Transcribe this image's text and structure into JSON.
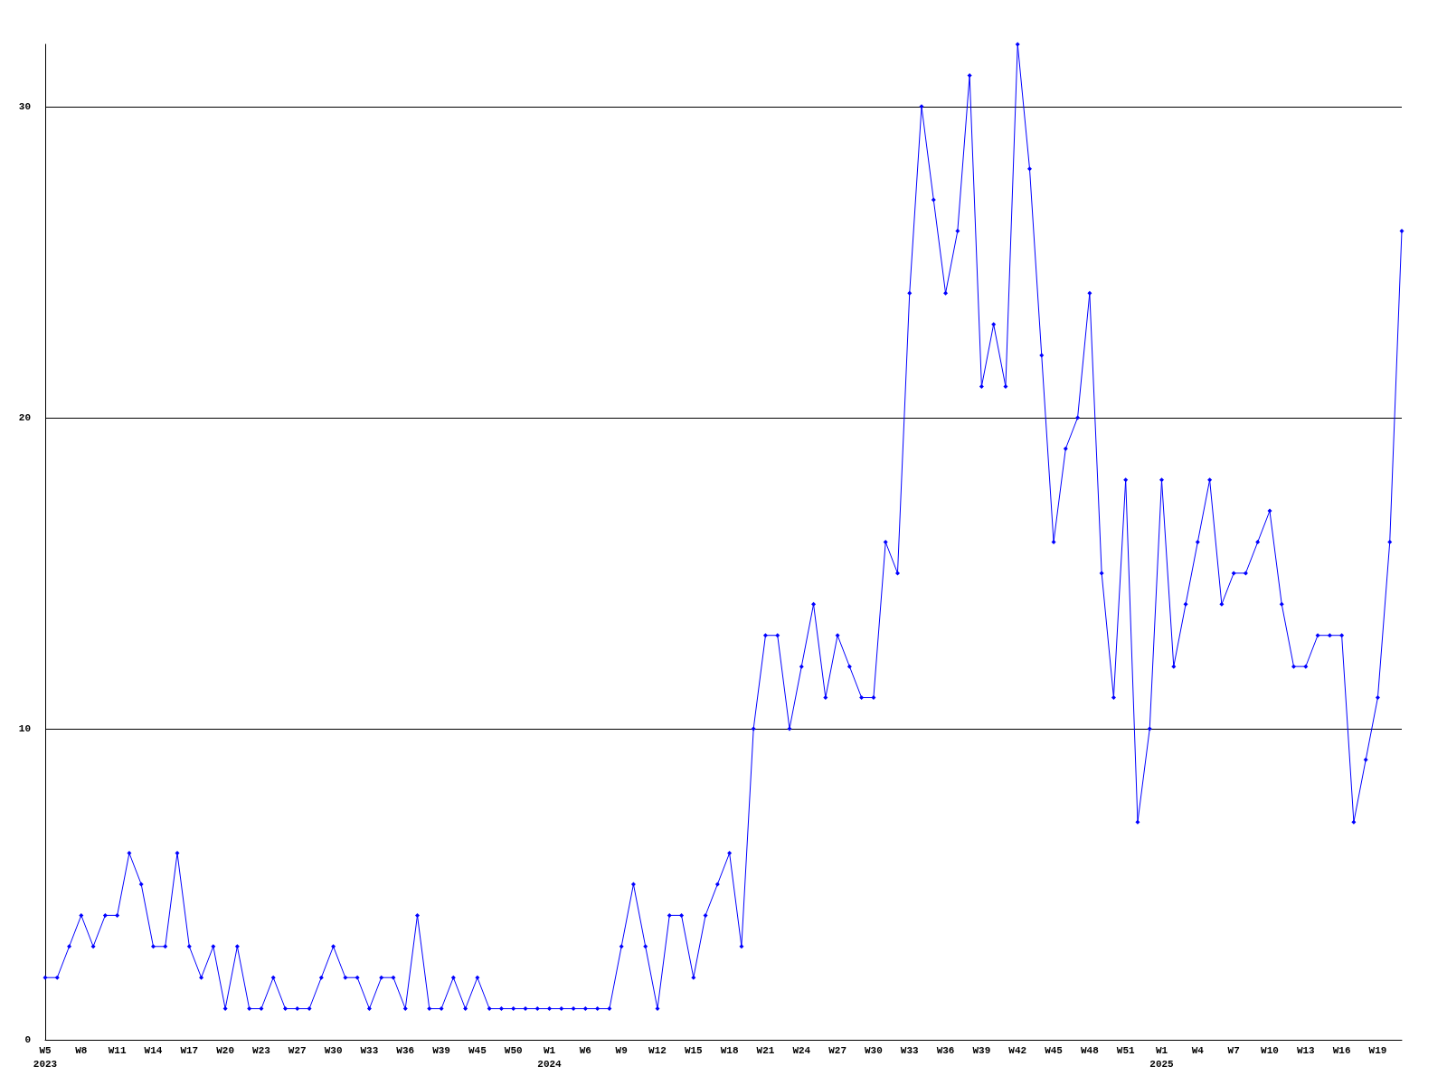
{
  "chart_data": {
    "type": "line",
    "categories": [
      "W5\n2023",
      null,
      null,
      "W8",
      null,
      null,
      "W11",
      null,
      null,
      "W14",
      null,
      null,
      "W17",
      null,
      null,
      "W20",
      null,
      null,
      "W23",
      null,
      null,
      "W27",
      null,
      null,
      "W30",
      null,
      null,
      "W33",
      null,
      null,
      "W36",
      null,
      null,
      "W39",
      null,
      null,
      "W45",
      null,
      null,
      "W50",
      null,
      null,
      "W1\n2024",
      null,
      null,
      "W6",
      null,
      null,
      "W9",
      null,
      null,
      "W12",
      null,
      null,
      "W15",
      null,
      null,
      "W18",
      null,
      null,
      "W21",
      null,
      null,
      "W24",
      null,
      null,
      "W27",
      null,
      null,
      "W30",
      null,
      null,
      "W33",
      null,
      null,
      "W36",
      null,
      null,
      "W39",
      null,
      null,
      "W42",
      null,
      null,
      "W45",
      null,
      null,
      "W48",
      null,
      null,
      "W51",
      null,
      null,
      "W1\n2025",
      null,
      null,
      "W4",
      null,
      null,
      "W7",
      null,
      null,
      "W10",
      null,
      null,
      "W13",
      null,
      null,
      "W16",
      null,
      null,
      "W19",
      null,
      null
    ],
    "series": [
      {
        "color": "#0000ff",
        "values": [
          2,
          2,
          3,
          4,
          3,
          4,
          4,
          6,
          5,
          3,
          3,
          6,
          3,
          2,
          3,
          1,
          3,
          1,
          1,
          2,
          1,
          1,
          1,
          2,
          3,
          2,
          2,
          1,
          2,
          2,
          1,
          4,
          1,
          1,
          2,
          1,
          2,
          1,
          1,
          1,
          1,
          1,
          1,
          1,
          1,
          1,
          1,
          1,
          3,
          5,
          3,
          1,
          4,
          4,
          2,
          4,
          5,
          6,
          3,
          10,
          13,
          13,
          10,
          12,
          14,
          11,
          13,
          12,
          11,
          11,
          16,
          15,
          24,
          30,
          27,
          24,
          26,
          31,
          21,
          23,
          21,
          32,
          28,
          22,
          16,
          19,
          20,
          24,
          15,
          11,
          18,
          7,
          10,
          18,
          12,
          14,
          16,
          18,
          14,
          15,
          15,
          16,
          17,
          14,
          12,
          12,
          13,
          13,
          13,
          7,
          9,
          11,
          16,
          26
        ]
      }
    ],
    "ylim": [
      0,
      32
    ],
    "yticks": [
      0,
      10,
      20,
      30
    ],
    "grid": "y",
    "marker": "diamond",
    "line_style": "solid"
  }
}
